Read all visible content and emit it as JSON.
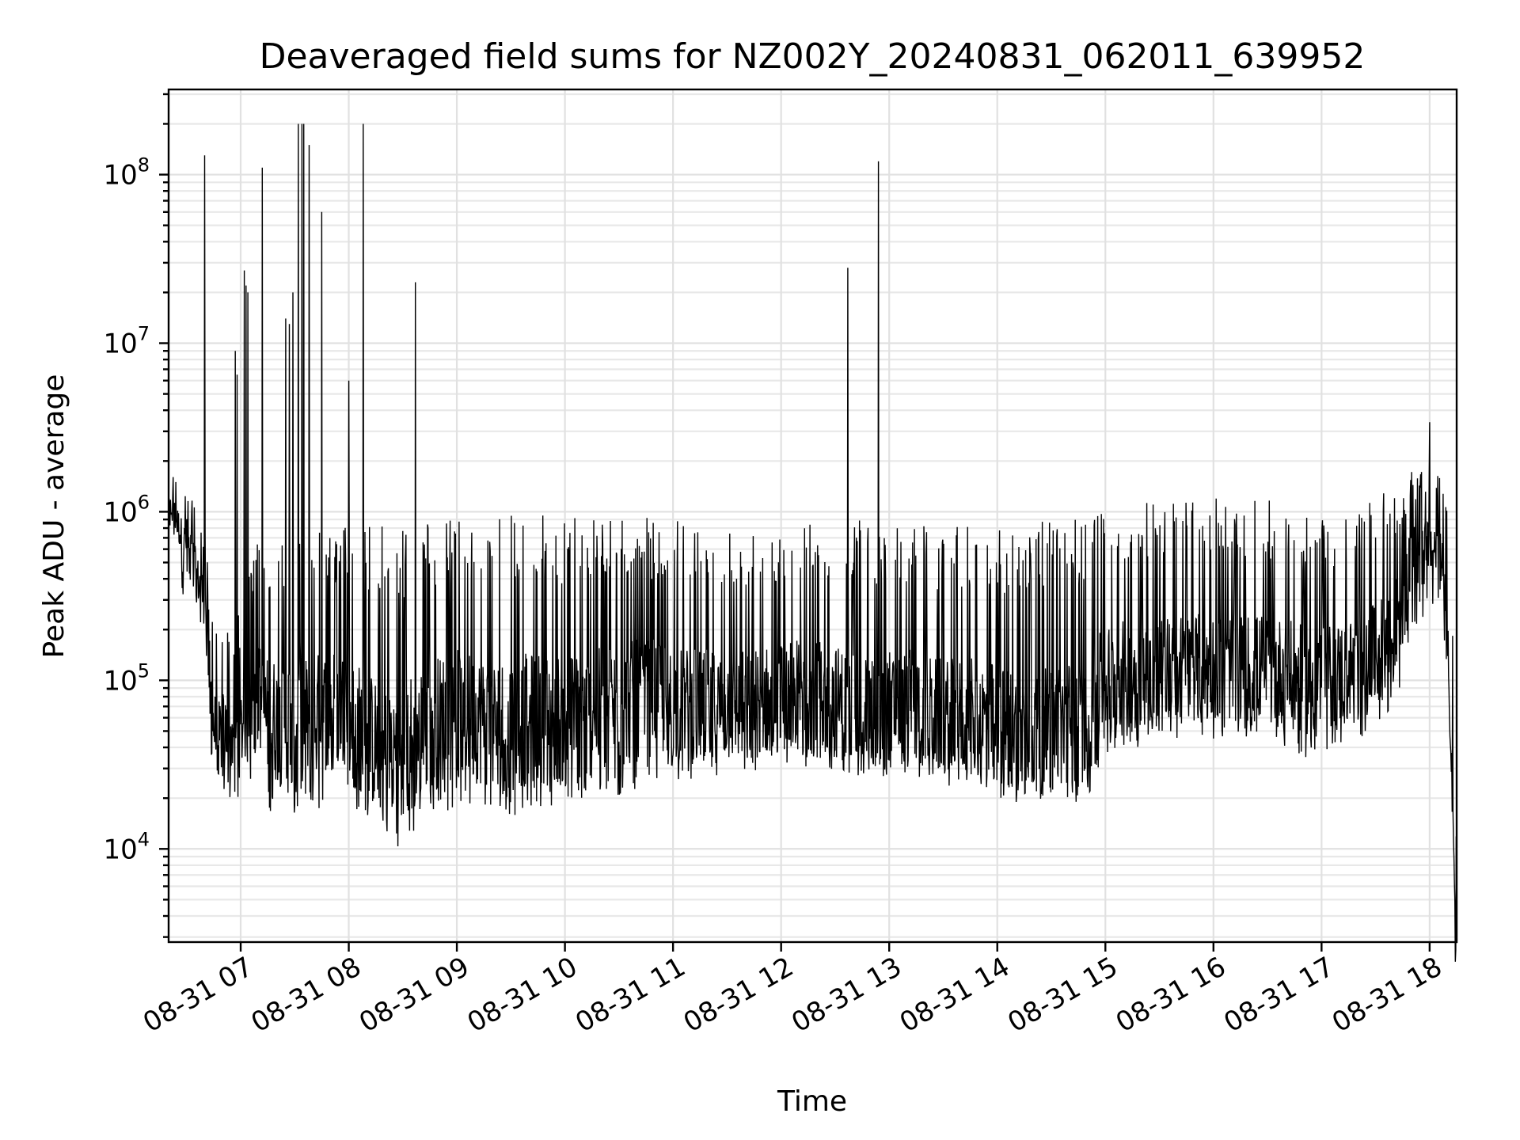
{
  "chart_data": {
    "type": "line",
    "title": "Deaveraged field sums for NZ002Y_20240831_062011_639952",
    "xlabel": "Time",
    "ylabel": "Peak ADU - average",
    "x_scale": "time",
    "y_scale": "log",
    "xlim": [
      "2024-08-31 06:20",
      "2024-08-31 18:15"
    ],
    "ylim": [
      2800,
      320000000
    ],
    "grid": true,
    "grid_minor": true,
    "legend": "none",
    "line_color": "#000000",
    "x_ticks": [
      "2024-08-31 07:00",
      "2024-08-31 08:00",
      "2024-08-31 09:00",
      "2024-08-31 10:00",
      "2024-08-31 11:00",
      "2024-08-31 12:00",
      "2024-08-31 13:00",
      "2024-08-31 14:00",
      "2024-08-31 15:00",
      "2024-08-31 16:00",
      "2024-08-31 17:00",
      "2024-08-31 18:00"
    ],
    "x_tick_labels": [
      "08-31 07",
      "08-31 08",
      "08-31 09",
      "08-31 10",
      "08-31 11",
      "08-31 12",
      "08-31 13",
      "08-31 14",
      "08-31 15",
      "08-31 16",
      "08-31 17",
      "08-31 18"
    ],
    "y_ticks": [
      10000,
      100000,
      1000000,
      10000000,
      100000000
    ],
    "y_tick_labels": [
      {
        "base": "10",
        "exp": "4"
      },
      {
        "base": "10",
        "exp": "5"
      },
      {
        "base": "10",
        "exp": "6"
      },
      {
        "base": "10",
        "exp": "7"
      },
      {
        "base": "10",
        "exp": "8"
      }
    ],
    "series": [
      {
        "time": [
          "2024-08-31 06:20",
          "2024-08-31 06:22",
          "2024-08-31 06:24",
          "2024-08-31 06:26",
          "2024-08-31 06:28",
          "2024-08-31 06:30",
          "2024-08-31 06:32",
          "2024-08-31 06:34",
          "2024-08-31 06:36",
          "2024-08-31 06:38",
          "2024-08-31 06:40",
          "2024-08-31 06:42",
          "2024-08-31 06:44",
          "2024-08-31 06:46",
          "2024-08-31 06:48",
          "2024-08-31 06:50",
          "2024-08-31 06:52",
          "2024-08-31 06:54",
          "2024-08-31 06:56",
          "2024-08-31 06:58",
          "2024-08-31 07:00",
          "2024-08-31 07:02",
          "2024-08-31 07:04",
          "2024-08-31 07:06",
          "2024-08-31 07:08",
          "2024-08-31 07:10",
          "2024-08-31 07:14",
          "2024-08-31 07:18",
          "2024-08-31 07:22",
          "2024-08-31 07:26",
          "2024-08-31 07:30",
          "2024-08-31 07:33",
          "2024-08-31 07:34",
          "2024-08-31 07:36",
          "2024-08-31 07:38",
          "2024-08-31 07:42",
          "2024-08-31 07:46",
          "2024-08-31 07:50",
          "2024-08-31 07:54",
          "2024-08-31 07:58",
          "2024-08-31 08:00",
          "2024-08-31 08:04",
          "2024-08-31 08:08",
          "2024-08-31 08:12",
          "2024-08-31 08:16",
          "2024-08-31 08:20",
          "2024-08-31 08:24",
          "2024-08-31 08:28",
          "2024-08-31 08:32",
          "2024-08-31 08:36",
          "2024-08-31 08:40",
          "2024-08-31 08:44",
          "2024-08-31 08:48",
          "2024-08-31 08:52",
          "2024-08-31 08:56",
          "2024-08-31 09:00",
          "2024-08-31 09:10",
          "2024-08-31 09:20",
          "2024-08-31 09:30",
          "2024-08-31 09:40",
          "2024-08-31 09:50",
          "2024-08-31 10:00",
          "2024-08-31 10:10",
          "2024-08-31 10:20",
          "2024-08-31 10:30",
          "2024-08-31 10:40",
          "2024-08-31 10:50",
          "2024-08-31 11:00",
          "2024-08-31 11:10",
          "2024-08-31 11:20",
          "2024-08-31 11:30",
          "2024-08-31 11:40",
          "2024-08-31 11:50",
          "2024-08-31 12:00",
          "2024-08-31 12:10",
          "2024-08-31 12:20",
          "2024-08-31 12:30",
          "2024-08-31 12:37",
          "2024-08-31 12:40",
          "2024-08-31 12:50",
          "2024-08-31 12:54",
          "2024-08-31 13:00",
          "2024-08-31 13:10",
          "2024-08-31 13:20",
          "2024-08-31 13:30",
          "2024-08-31 13:40",
          "2024-08-31 13:50",
          "2024-08-31 14:00",
          "2024-08-31 14:10",
          "2024-08-31 14:20",
          "2024-08-31 14:30",
          "2024-08-31 14:40",
          "2024-08-31 14:50",
          "2024-08-31 15:00",
          "2024-08-31 15:10",
          "2024-08-31 15:20",
          "2024-08-31 15:30",
          "2024-08-31 15:40",
          "2024-08-31 15:50",
          "2024-08-31 16:00",
          "2024-08-31 16:10",
          "2024-08-31 16:20",
          "2024-08-31 16:30",
          "2024-08-31 16:40",
          "2024-08-31 16:50",
          "2024-08-31 17:00",
          "2024-08-31 17:10",
          "2024-08-31 17:20",
          "2024-08-31 17:30",
          "2024-08-31 17:40",
          "2024-08-31 17:50",
          "2024-08-31 18:00",
          "2024-08-31 18:05",
          "2024-08-31 18:10",
          "2024-08-31 18:14"
        ],
        "low": [
          700000,
          800000,
          600000,
          500000,
          300000,
          400000,
          350000,
          300000,
          250000,
          200000,
          150000,
          100000,
          30000,
          25000,
          20000,
          20000,
          25000,
          20000,
          22000,
          18000,
          20000,
          25000,
          18000,
          25000,
          30000,
          25000,
          18000,
          16000,
          15000,
          16000,
          15000,
          16000,
          15000,
          18000,
          14000,
          15000,
          20000,
          22000,
          25000,
          25000,
          20000,
          17000,
          16000,
          15000,
          14000,
          10000,
          12000,
          10000,
          11000,
          12000,
          14000,
          15000,
          15000,
          16000,
          17000,
          18000,
          17000,
          16000,
          15000,
          17000,
          17000,
          17000,
          18000,
          20000,
          20000,
          22000,
          25000,
          25000,
          25000,
          25000,
          25000,
          25000,
          27000,
          30000,
          30000,
          30000,
          28000,
          27000,
          27000,
          26000,
          25000,
          26000,
          26000,
          25000,
          24000,
          23000,
          22000,
          20000,
          18000,
          18000,
          18000,
          18000,
          20000,
          35000,
          40000,
          40000,
          45000,
          45000,
          45000,
          45000,
          45000,
          45000,
          45000,
          40000,
          35000,
          35000,
          40000,
          45000,
          50000,
          60000,
          200000,
          250000,
          250000,
          100000,
          5000
        ],
        "high": [
          1500000,
          1800000,
          1600000,
          1600000,
          1500000,
          1400000,
          1300000,
          1200000,
          1000000,
          900000,
          800000,
          700000,
          300000,
          250000,
          200000,
          250000,
          200000,
          200000,
          250000,
          250000,
          300000,
          300000,
          400000,
          500000,
          600000,
          700000,
          750000,
          750000,
          700000,
          750000,
          800000,
          850000,
          800000,
          800000,
          850000,
          850000,
          850000,
          850000,
          850000,
          850000,
          850000,
          850000,
          850000,
          850000,
          850000,
          850000,
          850000,
          850000,
          850000,
          850000,
          850000,
          900000,
          900000,
          900000,
          900000,
          900000,
          900000,
          900000,
          950000,
          950000,
          950000,
          1000000,
          1000000,
          1000000,
          1000000,
          950000,
          900000,
          900000,
          850000,
          800000,
          800000,
          800000,
          800000,
          850000,
          850000,
          900000,
          900000,
          900000,
          900000,
          900000,
          900000,
          900000,
          900000,
          850000,
          850000,
          850000,
          850000,
          850000,
          850000,
          850000,
          900000,
          950000,
          1000000,
          1100000,
          1100000,
          1100000,
          1200000,
          1200000,
          1200000,
          1200000,
          1200000,
          1200000,
          1200000,
          1100000,
          1000000,
          1000000,
          1000000,
          1000000,
          1200000,
          1400000,
          1800000,
          1800000,
          1800000,
          1200000,
          400000
        ],
        "center": [
          1000000,
          1100000,
          900000,
          800000,
          600000,
          700000,
          600000,
          500000,
          400000,
          350000,
          300000,
          200000,
          60000,
          50000,
          45000,
          50000,
          50000,
          45000,
          50000,
          45000,
          50000,
          60000,
          60000,
          80000,
          90000,
          80000,
          60000,
          60000,
          55000,
          60000,
          60000,
          70000,
          60000,
          60000,
          55000,
          60000,
          65000,
          70000,
          70000,
          70000,
          60000,
          55000,
          50000,
          45000,
          40000,
          35000,
          40000,
          35000,
          40000,
          45000,
          50000,
          55000,
          55000,
          60000,
          60000,
          65000,
          60000,
          55000,
          55000,
          60000,
          60000,
          60000,
          60000,
          65000,
          70000,
          75000,
          80000,
          75000,
          70000,
          70000,
          70000,
          70000,
          75000,
          80000,
          85000,
          80000,
          75000,
          70000,
          70000,
          70000,
          65000,
          70000,
          70000,
          65000,
          60000,
          60000,
          60000,
          55000,
          50000,
          50000,
          50000,
          55000,
          60000,
          100000,
          110000,
          110000,
          120000,
          120000,
          120000,
          120000,
          120000,
          120000,
          120000,
          110000,
          100000,
          100000,
          110000,
          120000,
          140000,
          180000,
          500000,
          600000,
          600000,
          300000,
          5000
        ]
      }
    ],
    "spikes": [
      {
        "time": "2024-08-31 06:40",
        "value": 130000000
      },
      {
        "time": "2024-08-31 06:57",
        "value": 9000000
      },
      {
        "time": "2024-08-31 06:58",
        "value": 6500000
      },
      {
        "time": "2024-08-31 07:02",
        "value": 27000000
      },
      {
        "time": "2024-08-31 07:03",
        "value": 22000000
      },
      {
        "time": "2024-08-31 07:04",
        "value": 20000000
      },
      {
        "time": "2024-08-31 07:12",
        "value": 110000000
      },
      {
        "time": "2024-08-31 07:25",
        "value": 14000000
      },
      {
        "time": "2024-08-31 07:27",
        "value": 13000000
      },
      {
        "time": "2024-08-31 07:29",
        "value": 20000000
      },
      {
        "time": "2024-08-31 07:32",
        "value": 200000000
      },
      {
        "time": "2024-08-31 07:34",
        "value": 200000000
      },
      {
        "time": "2024-08-31 07:35",
        "value": 200000000
      },
      {
        "time": "2024-08-31 07:38",
        "value": 150000000
      },
      {
        "time": "2024-08-31 07:45",
        "value": 60000000
      },
      {
        "time": "2024-08-31 08:00",
        "value": 6000000
      },
      {
        "time": "2024-08-31 08:08",
        "value": 200000000
      },
      {
        "time": "2024-08-31 08:37",
        "value": 23000000
      },
      {
        "time": "2024-08-31 12:37",
        "value": 28000000
      },
      {
        "time": "2024-08-31 12:54",
        "value": 120000000
      },
      {
        "time": "2024-08-31 18:00",
        "value": 3400000
      }
    ]
  }
}
